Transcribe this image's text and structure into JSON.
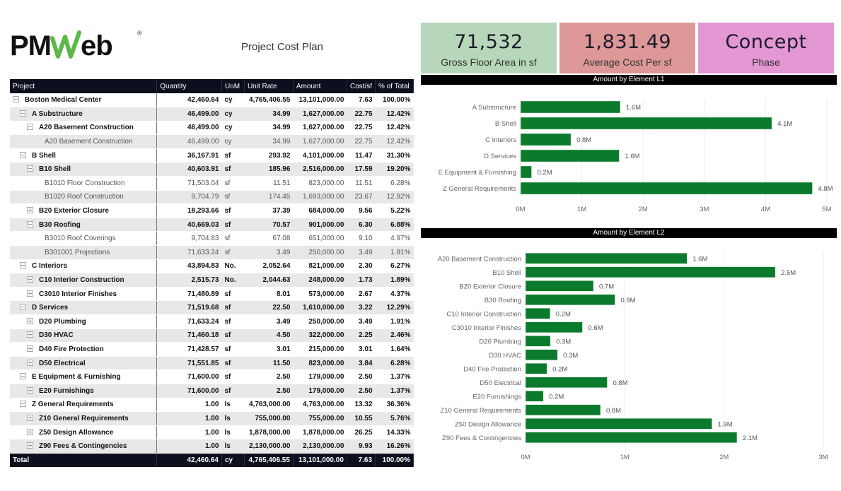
{
  "logo": {
    "text": "PMWeb",
    "registered": "®"
  },
  "report_title": "Project Cost Plan",
  "table": {
    "columns": [
      "Project",
      "Quantity",
      "UoM",
      "Unit Rate",
      "Amount",
      "Cost/sf",
      "% of Total"
    ],
    "rows": [
      {
        "level": 0,
        "toggle": "minus",
        "style": "bold",
        "name": "Boston Medical Center",
        "quantity": "42,460.64",
        "uom": "cy",
        "unit_rate": "4,765,406.55",
        "amount": "13,101,000.00",
        "cost_sf": "7.63",
        "pct": "100.00%"
      },
      {
        "level": 1,
        "toggle": "minus",
        "style": "bold",
        "name": "A Substructure",
        "quantity": "46,499.00",
        "uom": "cy",
        "unit_rate": "34.99",
        "amount": "1,627,000.00",
        "cost_sf": "22.75",
        "pct": "12.42%"
      },
      {
        "level": 2,
        "toggle": "minus",
        "style": "bold",
        "name": "A20 Basement Construction",
        "quantity": "46,499.00",
        "uom": "cy",
        "unit_rate": "34.99",
        "amount": "1,627,000.00",
        "cost_sf": "22.75",
        "pct": "12.42%"
      },
      {
        "level": 3,
        "toggle": "none",
        "style": "leaf",
        "name": "A20 Basement Construction",
        "quantity": "46,499.00",
        "uom": "cy",
        "unit_rate": "34.99",
        "amount": "1,627,000.00",
        "cost_sf": "22.75",
        "pct": "12.42%"
      },
      {
        "level": 1,
        "toggle": "minus",
        "style": "bold",
        "name": "B Shell",
        "quantity": "36,167.91",
        "uom": "sf",
        "unit_rate": "293.92",
        "amount": "4,101,000.00",
        "cost_sf": "11.47",
        "pct": "31.30%"
      },
      {
        "level": 2,
        "toggle": "minus",
        "style": "bold",
        "name": "B10 Shell",
        "quantity": "40,603.91",
        "uom": "sf",
        "unit_rate": "185.96",
        "amount": "2,516,000.00",
        "cost_sf": "17.59",
        "pct": "19.20%"
      },
      {
        "level": 3,
        "toggle": "none",
        "style": "leaf",
        "name": "B1010 Floor Construction",
        "quantity": "71,503.04",
        "uom": "sf",
        "unit_rate": "11.51",
        "amount": "823,000.00",
        "cost_sf": "11.51",
        "pct": "6.28%"
      },
      {
        "level": 3,
        "toggle": "none",
        "style": "leaf",
        "name": "B1020 Roof Construction",
        "quantity": "9,704.79",
        "uom": "sf",
        "unit_rate": "174.45",
        "amount": "1,693,000.00",
        "cost_sf": "23.67",
        "pct": "12.92%"
      },
      {
        "level": 2,
        "toggle": "plus",
        "style": "bold",
        "name": "B20 Exterior Closure",
        "quantity": "18,293.66",
        "uom": "sf",
        "unit_rate": "37.39",
        "amount": "684,000.00",
        "cost_sf": "9.56",
        "pct": "5.22%"
      },
      {
        "level": 2,
        "toggle": "minus",
        "style": "bold",
        "name": "B30 Roofing",
        "quantity": "40,669.03",
        "uom": "sf",
        "unit_rate": "70.57",
        "amount": "901,000.00",
        "cost_sf": "6.30",
        "pct": "6.88%"
      },
      {
        "level": 3,
        "toggle": "none",
        "style": "leaf",
        "name": "B3010 Roof Coverings",
        "quantity": "9,704.83",
        "uom": "sf",
        "unit_rate": "67.08",
        "amount": "651,000.00",
        "cost_sf": "9.10",
        "pct": "4.97%"
      },
      {
        "level": 3,
        "toggle": "none",
        "style": "leaf",
        "name": "B301001 Projections",
        "quantity": "71,633.24",
        "uom": "sf",
        "unit_rate": "3.49",
        "amount": "250,000.00",
        "cost_sf": "3.49",
        "pct": "1.91%"
      },
      {
        "level": 1,
        "toggle": "minus",
        "style": "bold",
        "name": "C Interiors",
        "quantity": "43,894.83",
        "uom": "No.",
        "unit_rate": "2,052.64",
        "amount": "821,000.00",
        "cost_sf": "2.30",
        "pct": "6.27%"
      },
      {
        "level": 2,
        "toggle": "plus",
        "style": "bold",
        "name": "C10 Interior Construction",
        "quantity": "2,515.73",
        "uom": "No.",
        "unit_rate": "2,044.63",
        "amount": "248,000.00",
        "cost_sf": "1.73",
        "pct": "1.89%"
      },
      {
        "level": 2,
        "toggle": "plus",
        "style": "bold",
        "name": "C3010 Interior Finishes",
        "quantity": "71,480.89",
        "uom": "sf",
        "unit_rate": "8.01",
        "amount": "573,000.00",
        "cost_sf": "2.67",
        "pct": "4.37%"
      },
      {
        "level": 1,
        "toggle": "minus",
        "style": "bold",
        "name": "D Services",
        "quantity": "71,519.68",
        "uom": "sf",
        "unit_rate": "22.50",
        "amount": "1,610,000.00",
        "cost_sf": "3.22",
        "pct": "12.29%"
      },
      {
        "level": 2,
        "toggle": "plus",
        "style": "bold",
        "name": "D20 Plumbing",
        "quantity": "71,633.24",
        "uom": "sf",
        "unit_rate": "3.49",
        "amount": "250,000.00",
        "cost_sf": "3.49",
        "pct": "1.91%"
      },
      {
        "level": 2,
        "toggle": "plus",
        "style": "bold",
        "name": "D30 HVAC",
        "quantity": "71,460.18",
        "uom": "sf",
        "unit_rate": "4.50",
        "amount": "322,000.00",
        "cost_sf": "2.25",
        "pct": "2.46%"
      },
      {
        "level": 2,
        "toggle": "plus",
        "style": "bold",
        "name": "D40 Fire Protection",
        "quantity": "71,428.57",
        "uom": "sf",
        "unit_rate": "3.01",
        "amount": "215,000.00",
        "cost_sf": "3.01",
        "pct": "1.64%"
      },
      {
        "level": 2,
        "toggle": "plus",
        "style": "bold",
        "name": "D50 Electrical",
        "quantity": "71,551.85",
        "uom": "sf",
        "unit_rate": "11.50",
        "amount": "823,000.00",
        "cost_sf": "3.84",
        "pct": "6.28%"
      },
      {
        "level": 1,
        "toggle": "minus",
        "style": "bold",
        "name": "E Equipment & Furnishing",
        "quantity": "71,600.00",
        "uom": "sf",
        "unit_rate": "2.50",
        "amount": "179,000.00",
        "cost_sf": "2.50",
        "pct": "1.37%"
      },
      {
        "level": 2,
        "toggle": "plus",
        "style": "bold",
        "name": "E20 Furnishings",
        "quantity": "71,600.00",
        "uom": "sf",
        "unit_rate": "2.50",
        "amount": "179,000.00",
        "cost_sf": "2.50",
        "pct": "1.37%"
      },
      {
        "level": 1,
        "toggle": "minus",
        "style": "bold",
        "name": "Z General Requirements",
        "quantity": "1.00",
        "uom": "ls",
        "unit_rate": "4,763,000.00",
        "amount": "4,763,000.00",
        "cost_sf": "13.32",
        "pct": "36.36%"
      },
      {
        "level": 2,
        "toggle": "plus",
        "style": "bold",
        "name": "Z10 General Requirements",
        "quantity": "1.00",
        "uom": "ls",
        "unit_rate": "755,000.00",
        "amount": "755,000.00",
        "cost_sf": "10.55",
        "pct": "5.76%"
      },
      {
        "level": 2,
        "toggle": "plus",
        "style": "bold",
        "name": "Z50 Design Allowance",
        "quantity": "1.00",
        "uom": "ls",
        "unit_rate": "1,878,000.00",
        "amount": "1,878,000.00",
        "cost_sf": "26.25",
        "pct": "14.33%"
      },
      {
        "level": 2,
        "toggle": "plus",
        "style": "bold",
        "name": "Z90 Fees & Contingencies",
        "quantity": "1.00",
        "uom": "ls",
        "unit_rate": "2,130,000.00",
        "amount": "2,130,000.00",
        "cost_sf": "9.93",
        "pct": "16.26%"
      }
    ],
    "total": {
      "name": "Total",
      "quantity": "42,460.64",
      "uom": "cy",
      "unit_rate": "4,765,406.55",
      "amount": "13,101,000.00",
      "cost_sf": "7.63",
      "pct": "100.00%"
    }
  },
  "kpis": [
    {
      "value": "71,532",
      "label": "Gross Floor Area in sf",
      "color": "#b6d7b9"
    },
    {
      "value": "1,831.49",
      "label": "Average Cost Per sf",
      "color": "#dd9797"
    },
    {
      "value": "Concept",
      "label": "Phase",
      "color": "#e397d3"
    }
  ],
  "colors": {
    "bar": "#0b7a2c",
    "header_bg": "#0b0f1e",
    "row_alt": "#e8e8ea"
  },
  "chart_data": [
    {
      "type": "bar",
      "orientation": "horizontal",
      "title": "Amount by Element L1",
      "categories": [
        "A Substructure",
        "B Shell",
        "C Interiors",
        "D Services",
        "E Equipment & Furnishing",
        "Z General Requirements"
      ],
      "values": [
        1627000,
        4101000,
        821000,
        1610000,
        179000,
        4763000
      ],
      "data_labels": [
        "1.6M",
        "4.1M",
        "0.8M",
        "1.6M",
        "0.2M",
        "4.8M"
      ],
      "xlim": [
        0,
        5000000
      ],
      "xticks": [
        "0M",
        "1M",
        "2M",
        "3M",
        "4M",
        "5M"
      ],
      "xlabel": "",
      "ylabel": "",
      "grid": true
    },
    {
      "type": "bar",
      "orientation": "horizontal",
      "title": "Amount by Element L2",
      "categories": [
        "A20 Basement Construction",
        "B10 Shell",
        "B20 Exterior Closure",
        "B30 Roofing",
        "C10 Interior Construction",
        "C3010 Interior Finishes",
        "D20 Plumbing",
        "D30 HVAC",
        "D40 Fire Protection",
        "D50 Electrical",
        "E20 Furnishings",
        "Z10 General Requirements",
        "Z50 Design Allowance",
        "Z90 Fees & Contingencies"
      ],
      "values": [
        1627000,
        2516000,
        684000,
        901000,
        248000,
        573000,
        250000,
        322000,
        215000,
        823000,
        179000,
        755000,
        1878000,
        2130000
      ],
      "data_labels": [
        "1.6M",
        "2.5M",
        "0.7M",
        "0.9M",
        "0.2M",
        "0.6M",
        "0.3M",
        "0.3M",
        "0.2M",
        "0.8M",
        "0.2M",
        "0.8M",
        "1.9M",
        "2.1M"
      ],
      "xlim": [
        0,
        3000000
      ],
      "xticks": [
        "0M",
        "1M",
        "2M",
        "3M"
      ],
      "xlabel": "",
      "ylabel": "",
      "grid": true
    }
  ]
}
